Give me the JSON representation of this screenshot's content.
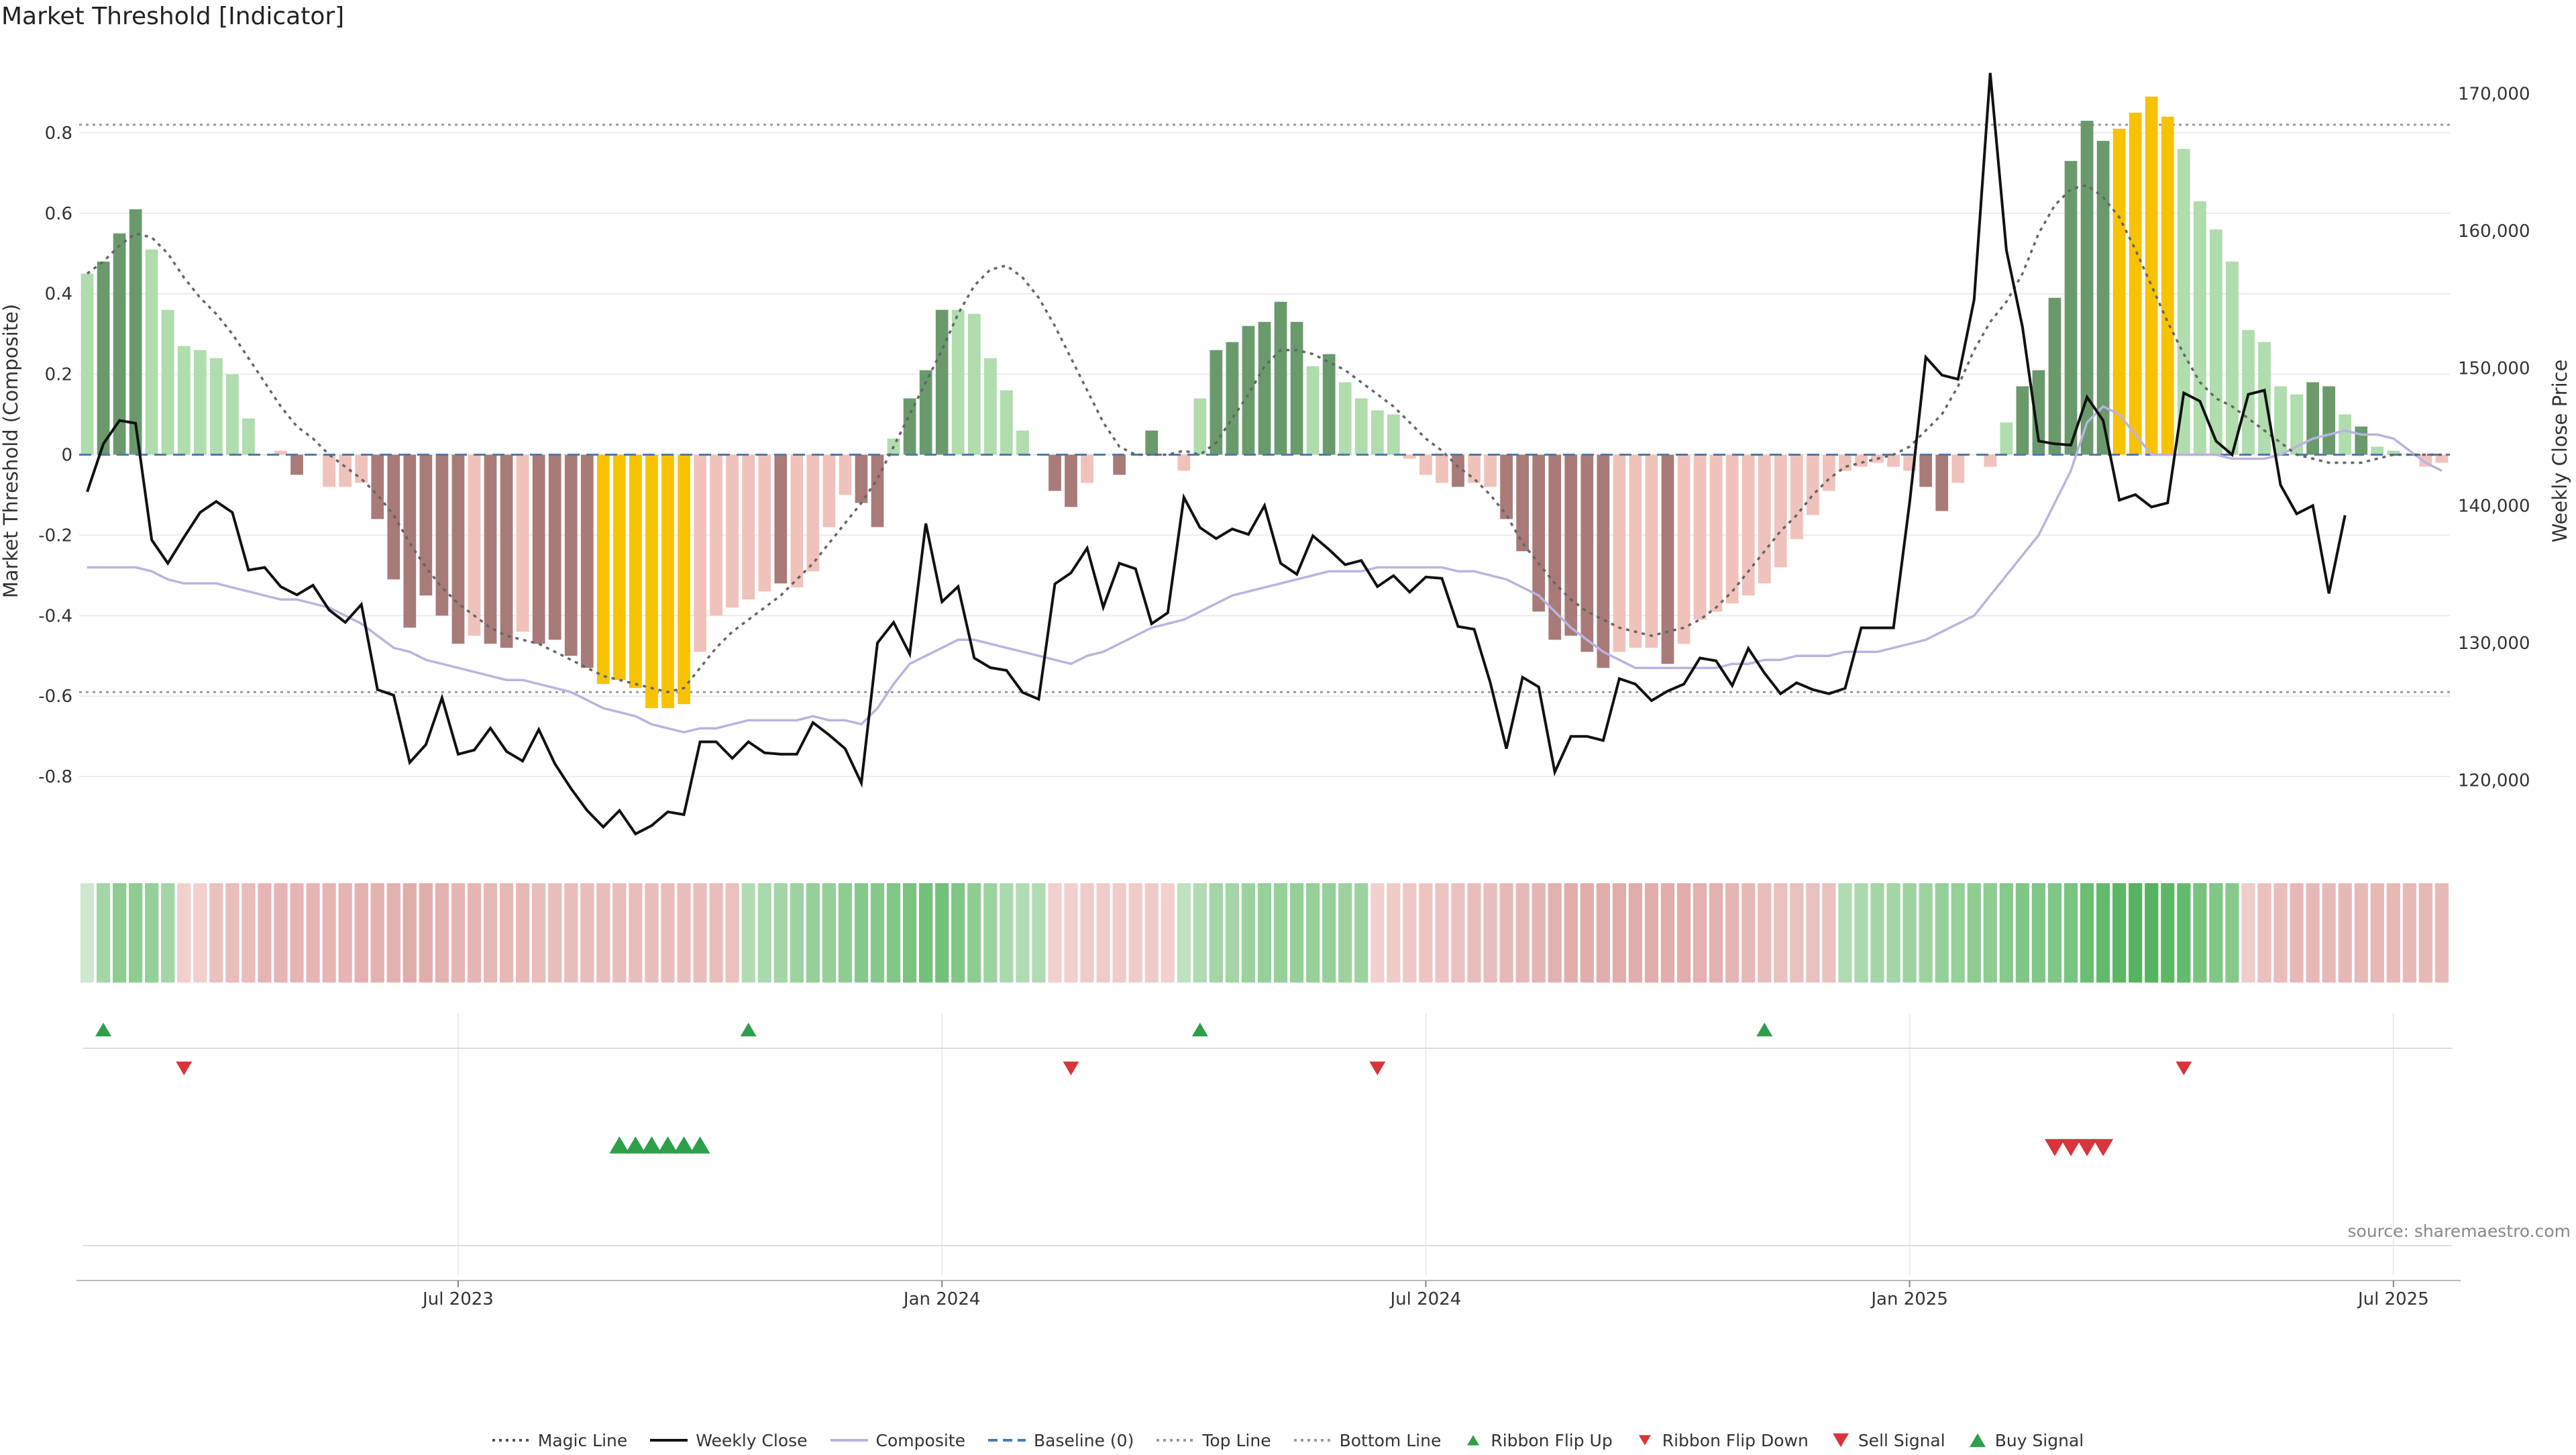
{
  "title": "Market Threshold [Indicator]",
  "source": "source: sharemaestro.com",
  "chart_data": {
    "type": "bar",
    "subcharts": [
      "composite-histogram",
      "ribbon",
      "flip-markers",
      "signal-markers"
    ],
    "ylabel": "Market Threshold (Composite)",
    "y2label": "Weekly Close Price",
    "ylim": [
      -0.98,
      1.0
    ],
    "y2lim": [
      115000,
      173000
    ],
    "yticks": [
      "-0.8",
      "-0.6",
      "-0.4",
      "-0.2",
      "0",
      "0.2",
      "0.4",
      "0.6",
      "0.8"
    ],
    "y2ticks": [
      "120,000",
      "130,000",
      "140,000",
      "150,000",
      "160,000",
      "170,000"
    ],
    "xticks": [
      "Jul 2023",
      "Jan 2024",
      "Jul 2024",
      "Jan 2025",
      "Jul 2025"
    ],
    "xtick_index": [
      23,
      53,
      83,
      113,
      143
    ],
    "top_line": 0.82,
    "bottom_line": -0.59,
    "baseline": 0,
    "grid": true,
    "legend_position": "bottom",
    "colors": {
      "strong_pos": "#6a9a6c",
      "weak_pos": "#b0dcae",
      "strong_neg": "#a87b78",
      "weak_neg": "#f0c2bc",
      "extreme": "#f7c300",
      "magic": "#666666",
      "close": "#111111",
      "composite": "#b9b3e0",
      "baseline": "#4a7bb0",
      "buy": "#2e9e4b",
      "sell": "#d9343a"
    },
    "bars": [
      0.45,
      0.48,
      0.55,
      0.61,
      0.51,
      0.36,
      0.27,
      0.26,
      0.24,
      0.2,
      0.09,
      0.0,
      0.01,
      -0.05,
      0.0,
      -0.08,
      -0.08,
      -0.07,
      -0.16,
      -0.31,
      -0.43,
      -0.35,
      -0.4,
      -0.47,
      -0.45,
      -0.47,
      -0.48,
      -0.44,
      -0.47,
      -0.46,
      -0.5,
      -0.53,
      -0.57,
      -0.56,
      -0.58,
      -0.63,
      -0.63,
      -0.62,
      -0.49,
      -0.4,
      -0.38,
      -0.36,
      -0.34,
      -0.32,
      -0.33,
      -0.29,
      -0.18,
      -0.1,
      -0.12,
      -0.18,
      0.04,
      0.14,
      0.21,
      0.36,
      0.36,
      0.35,
      0.24,
      0.16,
      0.06,
      0.0,
      -0.09,
      -0.13,
      -0.07,
      0.0,
      -0.05,
      0.0,
      0.06,
      0.0,
      -0.04,
      0.14,
      0.26,
      0.28,
      0.32,
      0.33,
      0.38,
      0.33,
      0.22,
      0.25,
      0.18,
      0.14,
      0.11,
      0.1,
      -0.01,
      -0.05,
      -0.07,
      -0.08,
      -0.07,
      -0.08,
      -0.16,
      -0.24,
      -0.39,
      -0.46,
      -0.45,
      -0.49,
      -0.53,
      -0.49,
      -0.48,
      -0.48,
      -0.52,
      -0.47,
      -0.41,
      -0.39,
      -0.37,
      -0.35,
      -0.32,
      -0.28,
      -0.21,
      -0.15,
      -0.09,
      -0.04,
      -0.03,
      -0.02,
      -0.03,
      -0.04,
      -0.08,
      -0.14,
      -0.07,
      0.0,
      -0.03,
      0.08,
      0.17,
      0.21,
      0.39,
      0.73,
      0.83,
      0.78,
      0.81,
      0.85,
      0.89,
      0.84,
      0.76,
      0.63,
      0.56,
      0.48,
      0.31,
      0.28,
      0.17,
      0.15,
      0.18,
      0.17,
      0.1,
      0.07,
      0.02,
      0.01,
      0.0,
      -0.03,
      -0.02
    ],
    "bar_class": [
      "wp",
      "sp",
      "sp",
      "sp",
      "wp",
      "wp",
      "wp",
      "wp",
      "wp",
      "wp",
      "wp",
      "wn",
      "wn",
      "sn",
      "wn",
      "wn",
      "wn",
      "wn",
      "sn",
      "sn",
      "sn",
      "sn",
      "sn",
      "sn",
      "wn",
      "sn",
      "sn",
      "wn",
      "sn",
      "sn",
      "sn",
      "sn",
      "ex",
      "ex",
      "ex",
      "ex",
      "ex",
      "ex",
      "wn",
      "wn",
      "wn",
      "wn",
      "wn",
      "sn",
      "wn",
      "wn",
      "wn",
      "wn",
      "sn",
      "sn",
      "wp",
      "sp",
      "sp",
      "sp",
      "wp",
      "wp",
      "wp",
      "wp",
      "wp",
      "wn",
      "sn",
      "sn",
      "wn",
      "wn",
      "sn",
      "wp",
      "sp",
      "wp",
      "wn",
      "wp",
      "sp",
      "sp",
      "sp",
      "sp",
      "sp",
      "sp",
      "wp",
      "sp",
      "wp",
      "wp",
      "wp",
      "wp",
      "wn",
      "wn",
      "wn",
      "sn",
      "wn",
      "wn",
      "sn",
      "sn",
      "sn",
      "sn",
      "sn",
      "sn",
      "sn",
      "wn",
      "wn",
      "wn",
      "sn",
      "wn",
      "wn",
      "wn",
      "wn",
      "wn",
      "wn",
      "wn",
      "wn",
      "wn",
      "wn",
      "wn",
      "wn",
      "wn",
      "wn",
      "wn",
      "sn",
      "sn",
      "wn",
      "wn",
      "wn",
      "wp",
      "sp",
      "sp",
      "sp",
      "sp",
      "sp",
      "sp",
      "ex",
      "ex",
      "ex",
      "ex",
      "wp",
      "wp",
      "wp",
      "wp",
      "wp",
      "wp",
      "wp",
      "wp",
      "sp",
      "sp",
      "wp",
      "sp",
      "wp",
      "wp",
      "wp",
      "wn",
      "wn",
      "wn",
      "wn"
    ],
    "magic_line": [
      0.45,
      0.48,
      0.52,
      0.55,
      0.54,
      0.5,
      0.44,
      0.39,
      0.35,
      0.3,
      0.24,
      0.18,
      0.12,
      0.07,
      0.04,
      0.0,
      -0.03,
      -0.06,
      -0.1,
      -0.15,
      -0.22,
      -0.28,
      -0.33,
      -0.37,
      -0.4,
      -0.43,
      -0.45,
      -0.46,
      -0.47,
      -0.49,
      -0.51,
      -0.53,
      -0.55,
      -0.56,
      -0.57,
      -0.58,
      -0.59,
      -0.58,
      -0.53,
      -0.48,
      -0.44,
      -0.41,
      -0.38,
      -0.35,
      -0.31,
      -0.27,
      -0.22,
      -0.17,
      -0.12,
      -0.06,
      0.02,
      0.1,
      0.18,
      0.26,
      0.35,
      0.42,
      0.46,
      0.47,
      0.44,
      0.39,
      0.32,
      0.24,
      0.16,
      0.08,
      0.02,
      0.0,
      0.0,
      0.0,
      0.01,
      0.0,
      0.03,
      0.09,
      0.15,
      0.22,
      0.26,
      0.26,
      0.25,
      0.23,
      0.21,
      0.18,
      0.15,
      0.12,
      0.08,
      0.04,
      0.01,
      -0.03,
      -0.06,
      -0.1,
      -0.15,
      -0.22,
      -0.27,
      -0.32,
      -0.36,
      -0.39,
      -0.41,
      -0.43,
      -0.44,
      -0.45,
      -0.44,
      -0.43,
      -0.41,
      -0.38,
      -0.34,
      -0.29,
      -0.24,
      -0.19,
      -0.15,
      -0.1,
      -0.06,
      -0.03,
      -0.02,
      -0.01,
      0.0,
      0.02,
      0.06,
      0.1,
      0.17,
      0.26,
      0.33,
      0.38,
      0.45,
      0.55,
      0.62,
      0.66,
      0.67,
      0.64,
      0.59,
      0.51,
      0.42,
      0.33,
      0.25,
      0.18,
      0.14,
      0.12,
      0.09,
      0.06,
      0.03,
      0.0,
      -0.01,
      -0.02,
      -0.02,
      -0.02,
      -0.01,
      0.0,
      0.0,
      0.0,
      0.0
    ],
    "weekly_close": [
      141000,
      144500,
      146200,
      146000,
      137500,
      135800,
      137700,
      139500,
      140300,
      139500,
      135300,
      135500,
      134100,
      133500,
      134200,
      132400,
      131500,
      132800,
      126600,
      126200,
      121300,
      122600,
      126000,
      121900,
      122200,
      123800,
      122100,
      121400,
      123700,
      121200,
      119400,
      117800,
      116600,
      117800,
      116100,
      116700,
      117700,
      117500,
      122800,
      122800,
      121600,
      122800,
      122000,
      121900,
      121900,
      124200,
      123300,
      122300,
      119800,
      130000,
      131500,
      129200,
      138700,
      133000,
      134100,
      128900,
      128200,
      128000,
      126400,
      125900,
      134300,
      135100,
      136900,
      132600,
      135800,
      135400,
      131400,
      132200,
      140600,
      138400,
      137600,
      138300,
      137900,
      140000,
      135800,
      135000,
      137800,
      136800,
      135700,
      136000,
      134100,
      134900,
      133700,
      134800,
      134700,
      131200,
      131000,
      127100,
      122300,
      127500,
      126800,
      120600,
      123200,
      123200,
      122900,
      127400,
      127000,
      125800,
      126500,
      127000,
      128900,
      128700,
      126900,
      129600,
      127800,
      126300,
      127100,
      126600,
      126300,
      126700,
      131100,
      131100,
      131100,
      140200,
      150800,
      149500,
      149200,
      155000,
      171500,
      158600,
      153000,
      144700,
      144500,
      144400,
      147900,
      146200,
      140400,
      140800,
      139900,
      140200,
      148200,
      147600,
      144700,
      143700,
      148100,
      148400,
      141500,
      139400,
      140000,
      133600,
      139300
    ],
    "composite": [
      -0.28,
      -0.28,
      -0.28,
      -0.28,
      -0.29,
      -0.31,
      -0.32,
      -0.32,
      -0.32,
      -0.33,
      -0.34,
      -0.35,
      -0.36,
      -0.36,
      -0.37,
      -0.38,
      -0.4,
      -0.42,
      -0.45,
      -0.48,
      -0.49,
      -0.51,
      -0.52,
      -0.53,
      -0.54,
      -0.55,
      -0.56,
      -0.56,
      -0.57,
      -0.58,
      -0.59,
      -0.61,
      -0.63,
      -0.64,
      -0.65,
      -0.67,
      -0.68,
      -0.69,
      -0.68,
      -0.68,
      -0.67,
      -0.66,
      -0.66,
      -0.66,
      -0.66,
      -0.65,
      -0.66,
      -0.66,
      -0.67,
      -0.63,
      -0.57,
      -0.52,
      -0.5,
      -0.48,
      -0.46,
      -0.46,
      -0.47,
      -0.48,
      -0.49,
      -0.5,
      -0.51,
      -0.52,
      -0.5,
      -0.49,
      -0.47,
      -0.45,
      -0.43,
      -0.42,
      -0.41,
      -0.39,
      -0.37,
      -0.35,
      -0.34,
      -0.33,
      -0.32,
      -0.31,
      -0.3,
      -0.29,
      -0.29,
      -0.29,
      -0.28,
      -0.28,
      -0.28,
      -0.28,
      -0.28,
      -0.29,
      -0.29,
      -0.3,
      -0.31,
      -0.33,
      -0.35,
      -0.39,
      -0.43,
      -0.46,
      -0.49,
      -0.51,
      -0.53,
      -0.53,
      -0.53,
      -0.53,
      -0.53,
      -0.53,
      -0.52,
      -0.52,
      -0.51,
      -0.51,
      -0.5,
      -0.5,
      -0.5,
      -0.49,
      -0.49,
      -0.49,
      -0.48,
      -0.47,
      -0.46,
      -0.44,
      -0.42,
      -0.4,
      -0.35,
      -0.3,
      -0.25,
      -0.2,
      -0.12,
      -0.04,
      0.08,
      0.12,
      0.1,
      0.05,
      0.0,
      0.0,
      0.0,
      0.0,
      0.0,
      -0.01,
      -0.01,
      -0.01,
      0.0,
      0.02,
      0.04,
      0.05,
      0.06,
      0.05,
      0.05,
      0.04,
      0.01,
      -0.02,
      -0.04
    ],
    "ribbon": [
      0.0,
      0.3,
      0.45,
      0.45,
      0.4,
      0.3,
      -0.1,
      -0.1,
      -0.3,
      -0.35,
      -0.35,
      -0.45,
      -0.45,
      -0.45,
      -0.45,
      -0.45,
      -0.45,
      -0.5,
      -0.5,
      -0.5,
      -0.55,
      -0.55,
      -0.5,
      -0.45,
      -0.45,
      -0.4,
      -0.4,
      -0.4,
      -0.35,
      -0.35,
      -0.35,
      -0.35,
      -0.35,
      -0.35,
      -0.35,
      -0.35,
      -0.35,
      -0.35,
      -0.35,
      -0.35,
      -0.3,
      0.2,
      0.25,
      0.3,
      0.35,
      0.4,
      0.4,
      0.45,
      0.5,
      0.5,
      0.55,
      0.6,
      0.65,
      0.65,
      0.55,
      0.45,
      0.35,
      0.25,
      0.2,
      0.2,
      -0.1,
      -0.1,
      -0.15,
      -0.15,
      -0.15,
      -0.15,
      -0.15,
      -0.1,
      0.1,
      0.2,
      0.3,
      0.3,
      0.35,
      0.4,
      0.4,
      0.4,
      0.4,
      0.4,
      0.35,
      0.35,
      -0.1,
      -0.15,
      -0.2,
      -0.25,
      -0.25,
      -0.3,
      -0.35,
      -0.35,
      -0.4,
      -0.4,
      -0.45,
      -0.5,
      -0.55,
      -0.55,
      -0.55,
      -0.55,
      -0.55,
      -0.55,
      -0.55,
      -0.55,
      -0.5,
      -0.5,
      -0.45,
      -0.4,
      -0.35,
      -0.3,
      -0.3,
      -0.3,
      -0.3,
      0.2,
      0.25,
      0.3,
      0.3,
      0.35,
      0.35,
      0.4,
      0.4,
      0.45,
      0.45,
      0.5,
      0.55,
      0.55,
      0.55,
      0.6,
      0.7,
      0.75,
      0.8,
      0.85,
      0.85,
      0.8,
      0.75,
      0.6,
      0.55,
      0.5,
      -0.15,
      -0.3,
      -0.35,
      -0.4,
      -0.4,
      -0.4,
      -0.4,
      -0.4,
      -0.4,
      -0.4,
      -0.4,
      -0.4,
      -0.4
    ],
    "ribbon_flip_up": [
      1,
      41,
      69,
      104
    ],
    "ribbon_flip_down": [
      6,
      61,
      80,
      130
    ],
    "buy_signal": [
      33,
      34,
      35,
      36,
      37,
      38
    ],
    "sell_signal": [
      122,
      123,
      124,
      125
    ]
  },
  "legend": [
    {
      "label": "Magic Line",
      "kind": "dotted",
      "color": "#555555"
    },
    {
      "label": "Weekly Close",
      "kind": "solid",
      "color": "#111111"
    },
    {
      "label": "Composite",
      "kind": "solid",
      "color": "#b9b3e0"
    },
    {
      "label": "Baseline (0)",
      "kind": "dashed",
      "color": "#4a7bb0"
    },
    {
      "label": "Top Line",
      "kind": "dotted",
      "color": "#999999"
    },
    {
      "label": "Bottom Line",
      "kind": "dotted",
      "color": "#999999"
    },
    {
      "label": "Ribbon Flip Up",
      "kind": "tri-up-small",
      "color": "#2e9e4b"
    },
    {
      "label": "Ribbon Flip Down",
      "kind": "tri-down-small",
      "color": "#d9343a"
    },
    {
      "label": "Sell Signal",
      "kind": "tri-down",
      "color": "#d9343a"
    },
    {
      "label": "Buy Signal",
      "kind": "tri-up",
      "color": "#2e9e4b"
    }
  ]
}
